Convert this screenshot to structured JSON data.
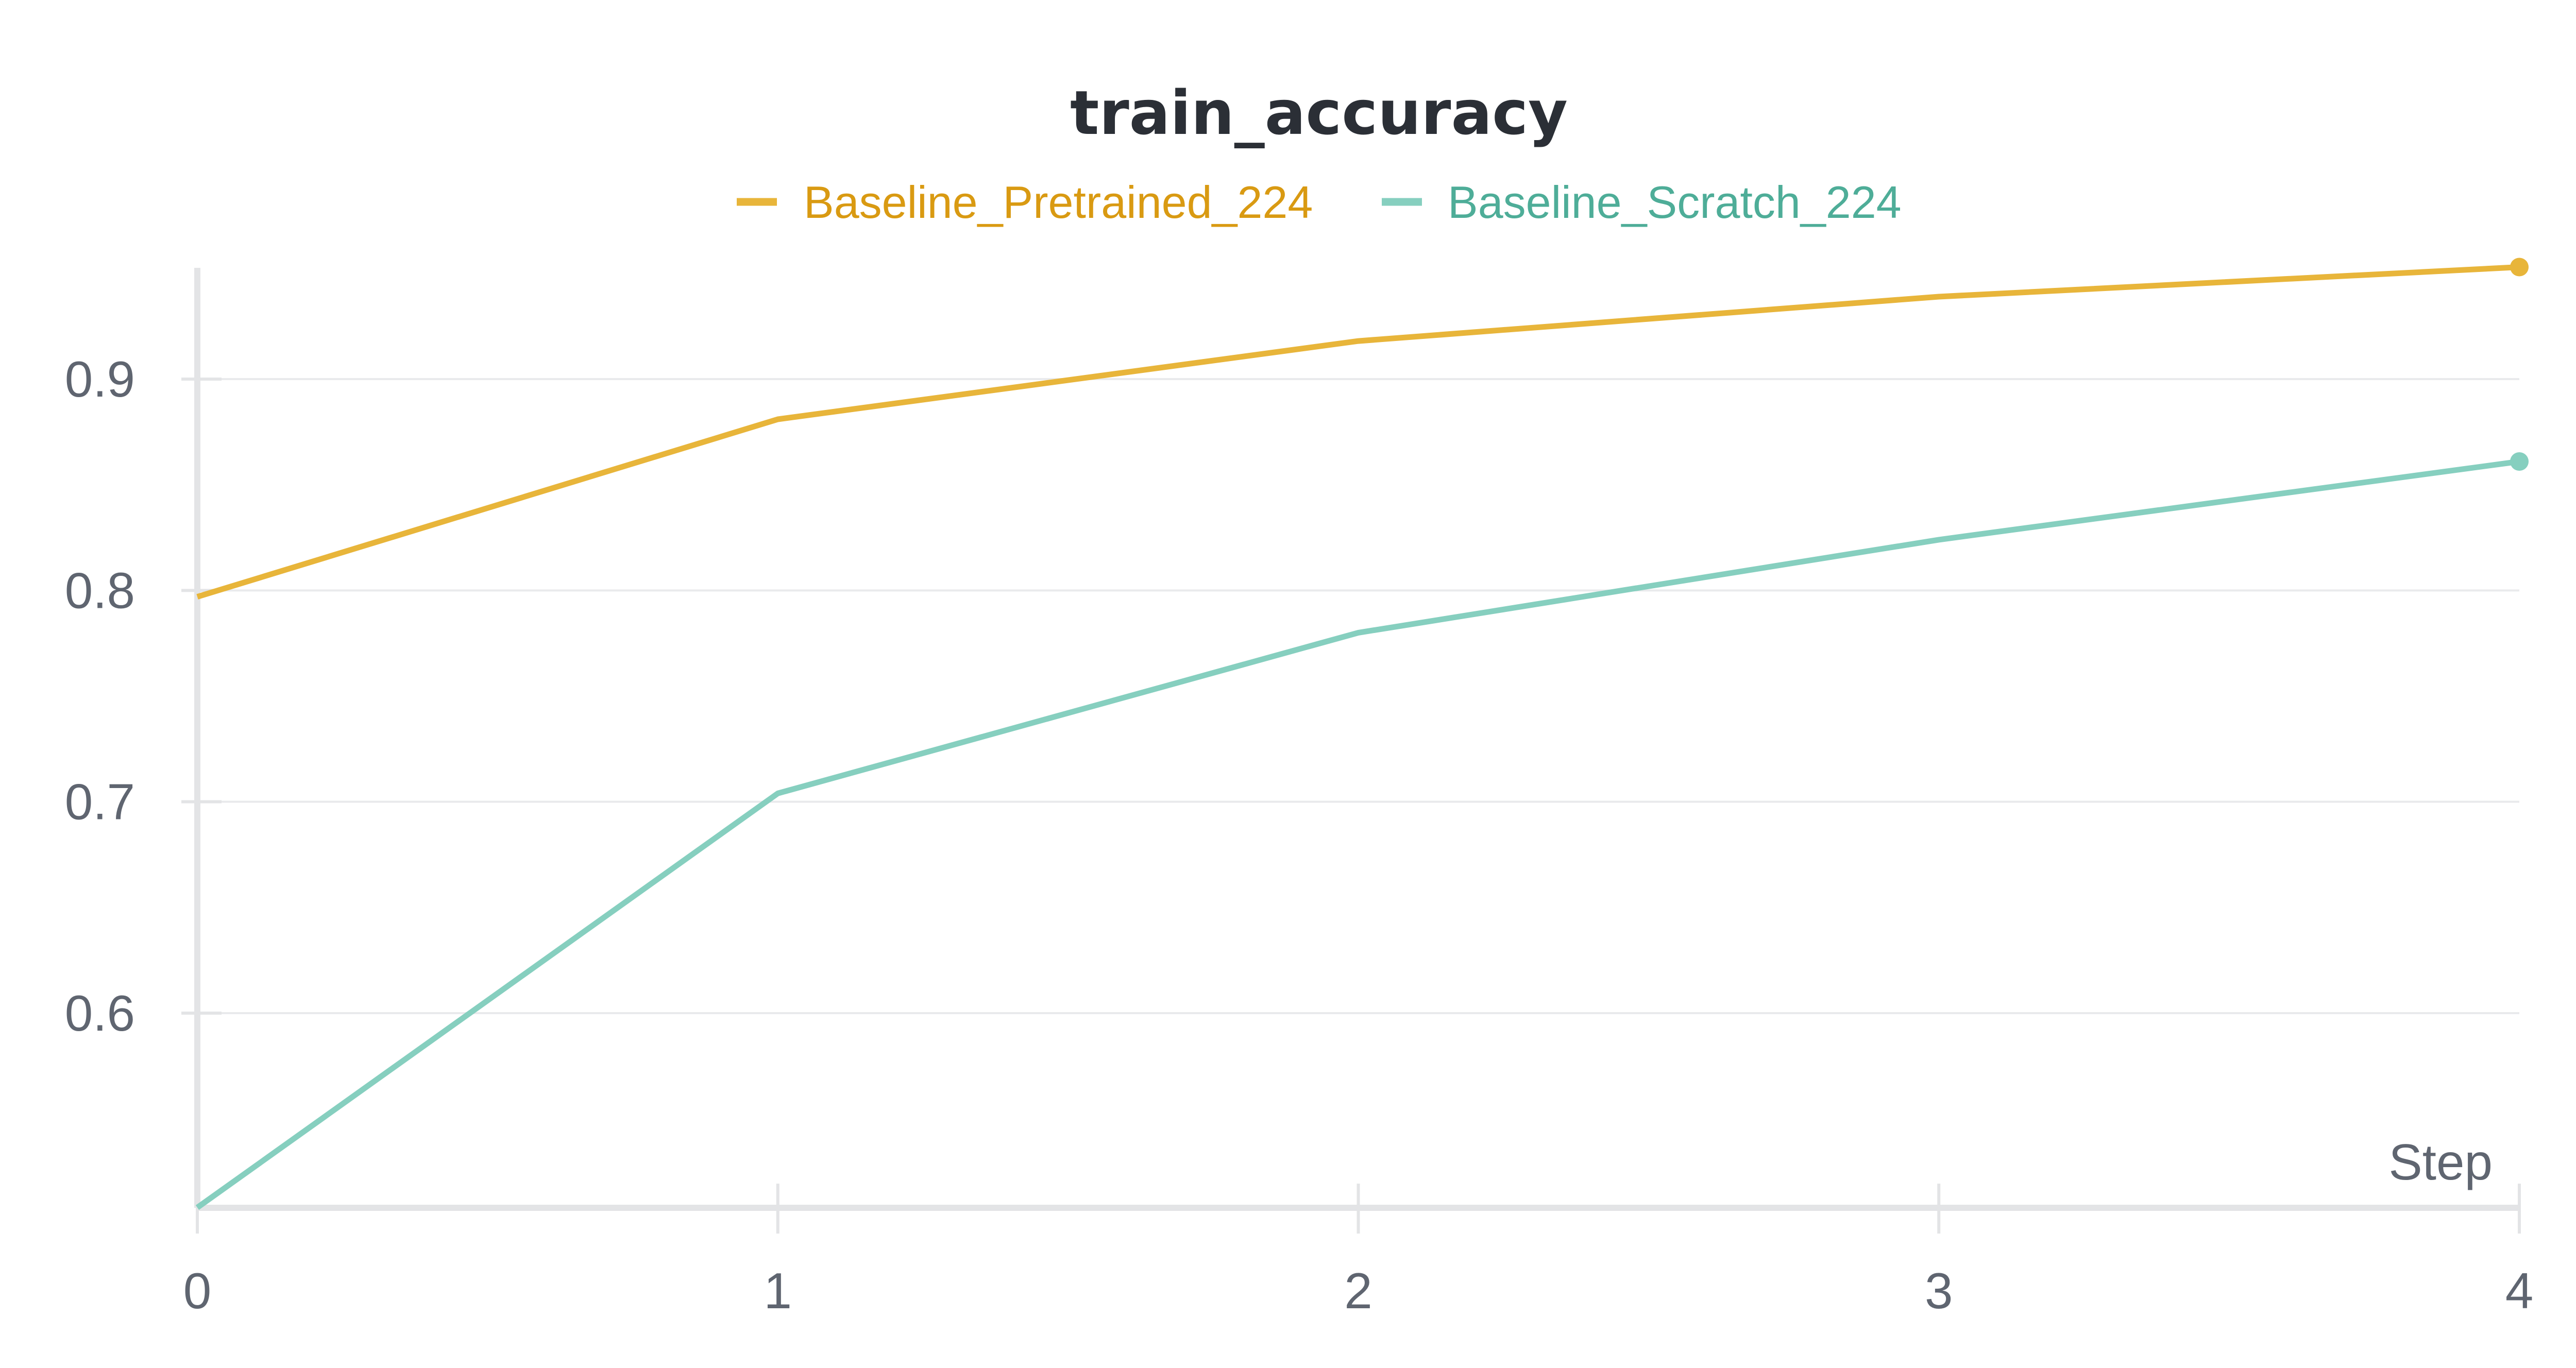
{
  "chart_data": {
    "type": "line",
    "title": "train_accuracy",
    "xlabel": "Step",
    "ylabel": "",
    "x": [
      0,
      1,
      2,
      3,
      4
    ],
    "x_ticks": [
      "0",
      "1",
      "2",
      "3",
      "4"
    ],
    "y_ticks": [
      "0.6",
      "0.7",
      "0.8",
      "0.9"
    ],
    "y_tick_values": [
      0.6,
      0.7,
      0.8,
      0.9
    ],
    "xlim": [
      0,
      4
    ],
    "ylim": [
      0.508,
      0.96
    ],
    "grid": true,
    "legend_position": "top-center",
    "series": [
      {
        "name": "Baseline_Pretrained_224",
        "color": "#e8b53a",
        "label_color": "#d99a12",
        "values": [
          0.797,
          0.881,
          0.918,
          0.939,
          0.953
        ]
      },
      {
        "name": "Baseline_Scratch_224",
        "color": "#86cfbf",
        "label_color": "#4ead98",
        "values": [
          0.508,
          0.704,
          0.78,
          0.824,
          0.861
        ]
      }
    ]
  }
}
